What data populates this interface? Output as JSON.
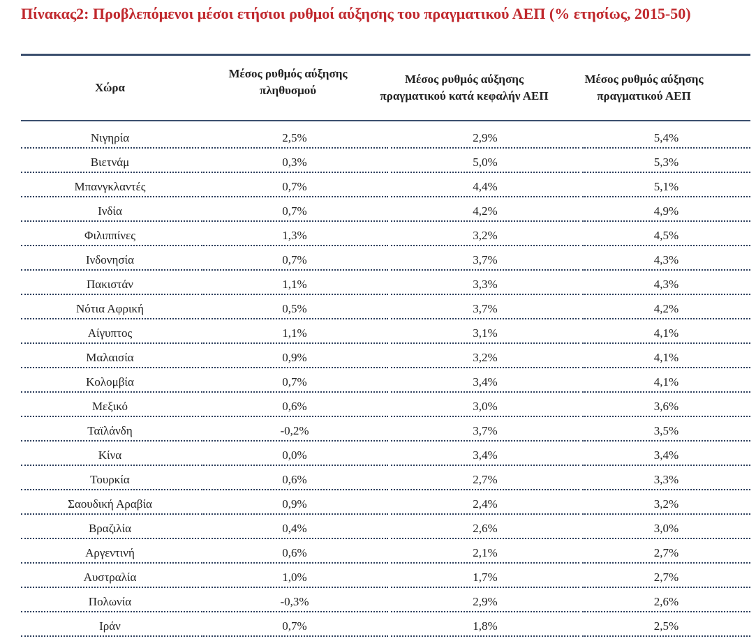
{
  "title": "Πίνακας2: Προβλεπόμενοι μέσοι ετήσιοι ρυθμοί αύξησης του πραγματικού ΑΕΠ (% ετησίως, 2015-50)",
  "headers": {
    "country": "Χώρα",
    "population": "Μέσος ρυθμός αύξησης πληθυσμού",
    "per_capita": "Μέσος ρυθμός αύξησης πραγματικού κατά κεφαλήν ΑΕΠ",
    "gdp": "Μέσος ρυθμός αύξησης πραγματικού ΑΕΠ"
  },
  "rows": [
    {
      "country": "Νιγηρία",
      "population": "2,5%",
      "per_capita": "2,9%",
      "gdp": "5,4%"
    },
    {
      "country": "Βιετνάμ",
      "population": "0,3%",
      "per_capita": "5,0%",
      "gdp": "5,3%"
    },
    {
      "country": "Μπανγκλαντές",
      "population": "0,7%",
      "per_capita": "4,4%",
      "gdp": "5,1%"
    },
    {
      "country": "Ινδία",
      "population": "0,7%",
      "per_capita": "4,2%",
      "gdp": "4,9%"
    },
    {
      "country": "Φιλιππίνες",
      "population": "1,3%",
      "per_capita": "3,2%",
      "gdp": "4,5%"
    },
    {
      "country": "Ινδονησία",
      "population": "0,7%",
      "per_capita": "3,7%",
      "gdp": "4,3%"
    },
    {
      "country": "Πακιστάν",
      "population": "1,1%",
      "per_capita": "3,3%",
      "gdp": "4,3%"
    },
    {
      "country": "Νότια Αφρική",
      "population": "0,5%",
      "per_capita": "3,7%",
      "gdp": "4,2%"
    },
    {
      "country": "Αίγυπτος",
      "population": "1,1%",
      "per_capita": "3,1%",
      "gdp": "4,1%"
    },
    {
      "country": "Μαλαισία",
      "population": "0,9%",
      "per_capita": "3,2%",
      "gdp": "4,1%"
    },
    {
      "country": "Κολομβία",
      "population": "0,7%",
      "per_capita": "3,4%",
      "gdp": "4,1%"
    },
    {
      "country": "Μεξικό",
      "population": "0,6%",
      "per_capita": "3,0%",
      "gdp": "3,6%"
    },
    {
      "country": "Ταϊλάνδη",
      "population": "-0,2%",
      "per_capita": "3,7%",
      "gdp": "3,5%"
    },
    {
      "country": "Κίνα",
      "population": "0,0%",
      "per_capita": "3,4%",
      "gdp": "3,4%"
    },
    {
      "country": "Τουρκία",
      "population": "0,6%",
      "per_capita": "2,7%",
      "gdp": "3,3%"
    },
    {
      "country": "Σαουδική Αραβία",
      "population": "0,9%",
      "per_capita": "2,4%",
      "gdp": "3,2%"
    },
    {
      "country": "Βραζιλία",
      "population": "0,4%",
      "per_capita": "2,6%",
      "gdp": "3,0%"
    },
    {
      "country": "Αργεντινή",
      "population": "0,6%",
      "per_capita": "2,1%",
      "gdp": "2,7%"
    },
    {
      "country": "Αυστραλία",
      "population": "1,0%",
      "per_capita": "1,7%",
      "gdp": "2,7%"
    },
    {
      "country": "Πολωνία",
      "population": "-0,3%",
      "per_capita": "2,9%",
      "gdp": "2,6%"
    },
    {
      "country": "Ιράν",
      "population": "0,7%",
      "per_capita": "1,8%",
      "gdp": "2,5%"
    }
  ]
}
